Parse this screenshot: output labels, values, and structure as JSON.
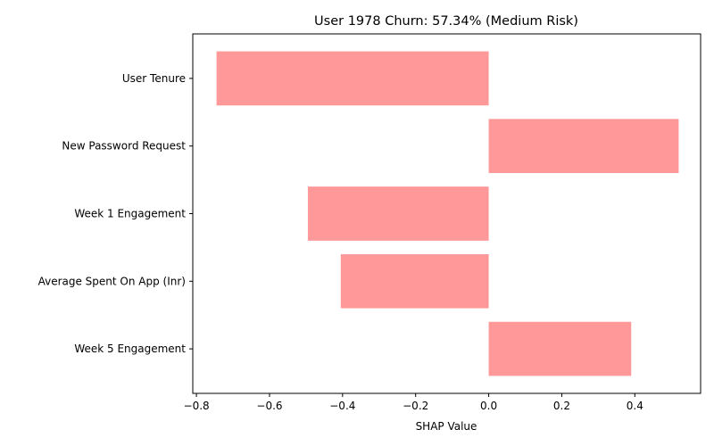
{
  "chart_data": {
    "type": "bar",
    "orientation": "horizontal",
    "title": "User 1978 Churn: 57.34% (Medium Risk)",
    "xlabel": "SHAP Value",
    "ylabel": "",
    "categories": [
      "User Tenure",
      "New Password Request",
      "Week 1 Engagement",
      "Average Spent On App (Inr)",
      "Week 5 Engagement"
    ],
    "values": [
      -0.745,
      0.52,
      -0.495,
      -0.405,
      0.39
    ],
    "xlim": [
      -0.81,
      0.58
    ],
    "xticks": [
      -0.8,
      -0.6,
      -0.4,
      -0.2,
      0.0,
      0.2,
      0.4
    ],
    "xtick_labels": [
      "−0.8",
      "−0.6",
      "−0.4",
      "−0.2",
      "0.0",
      "0.2",
      "0.4"
    ],
    "bar_color": "#ff9999",
    "grid": false,
    "legend": "none"
  }
}
